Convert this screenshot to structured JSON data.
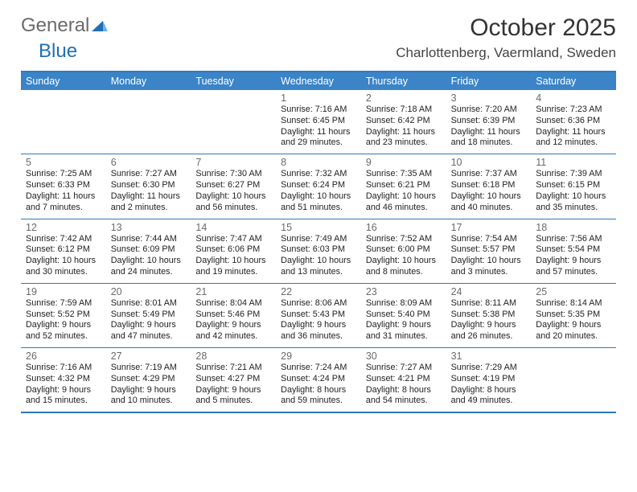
{
  "logo": {
    "word1": "General",
    "word2": "Blue"
  },
  "title": "October 2025",
  "location": "Charlottenberg, Vaermland, Sweden",
  "colors": {
    "header_bg": "#3a84c7",
    "header_text": "#ffffff",
    "rule": "#2f78bb",
    "daynum": "#6a6a6a",
    "body_text": "#222222",
    "logo_gray": "#6b6b6b",
    "logo_blue": "#1e6fb8"
  },
  "day_names": [
    "Sunday",
    "Monday",
    "Tuesday",
    "Wednesday",
    "Thursday",
    "Friday",
    "Saturday"
  ],
  "layout": {
    "columns": 7,
    "rows": 5,
    "first_day_column_index": 3
  },
  "days": [
    {
      "n": 1,
      "sunrise": "7:16 AM",
      "sunset": "6:45 PM",
      "daylight": "11 hours and 29 minutes."
    },
    {
      "n": 2,
      "sunrise": "7:18 AM",
      "sunset": "6:42 PM",
      "daylight": "11 hours and 23 minutes."
    },
    {
      "n": 3,
      "sunrise": "7:20 AM",
      "sunset": "6:39 PM",
      "daylight": "11 hours and 18 minutes."
    },
    {
      "n": 4,
      "sunrise": "7:23 AM",
      "sunset": "6:36 PM",
      "daylight": "11 hours and 12 minutes."
    },
    {
      "n": 5,
      "sunrise": "7:25 AM",
      "sunset": "6:33 PM",
      "daylight": "11 hours and 7 minutes."
    },
    {
      "n": 6,
      "sunrise": "7:27 AM",
      "sunset": "6:30 PM",
      "daylight": "11 hours and 2 minutes."
    },
    {
      "n": 7,
      "sunrise": "7:30 AM",
      "sunset": "6:27 PM",
      "daylight": "10 hours and 56 minutes."
    },
    {
      "n": 8,
      "sunrise": "7:32 AM",
      "sunset": "6:24 PM",
      "daylight": "10 hours and 51 minutes."
    },
    {
      "n": 9,
      "sunrise": "7:35 AM",
      "sunset": "6:21 PM",
      "daylight": "10 hours and 46 minutes."
    },
    {
      "n": 10,
      "sunrise": "7:37 AM",
      "sunset": "6:18 PM",
      "daylight": "10 hours and 40 minutes."
    },
    {
      "n": 11,
      "sunrise": "7:39 AM",
      "sunset": "6:15 PM",
      "daylight": "10 hours and 35 minutes."
    },
    {
      "n": 12,
      "sunrise": "7:42 AM",
      "sunset": "6:12 PM",
      "daylight": "10 hours and 30 minutes."
    },
    {
      "n": 13,
      "sunrise": "7:44 AM",
      "sunset": "6:09 PM",
      "daylight": "10 hours and 24 minutes."
    },
    {
      "n": 14,
      "sunrise": "7:47 AM",
      "sunset": "6:06 PM",
      "daylight": "10 hours and 19 minutes."
    },
    {
      "n": 15,
      "sunrise": "7:49 AM",
      "sunset": "6:03 PM",
      "daylight": "10 hours and 13 minutes."
    },
    {
      "n": 16,
      "sunrise": "7:52 AM",
      "sunset": "6:00 PM",
      "daylight": "10 hours and 8 minutes."
    },
    {
      "n": 17,
      "sunrise": "7:54 AM",
      "sunset": "5:57 PM",
      "daylight": "10 hours and 3 minutes."
    },
    {
      "n": 18,
      "sunrise": "7:56 AM",
      "sunset": "5:54 PM",
      "daylight": "9 hours and 57 minutes."
    },
    {
      "n": 19,
      "sunrise": "7:59 AM",
      "sunset": "5:52 PM",
      "daylight": "9 hours and 52 minutes."
    },
    {
      "n": 20,
      "sunrise": "8:01 AM",
      "sunset": "5:49 PM",
      "daylight": "9 hours and 47 minutes."
    },
    {
      "n": 21,
      "sunrise": "8:04 AM",
      "sunset": "5:46 PM",
      "daylight": "9 hours and 42 minutes."
    },
    {
      "n": 22,
      "sunrise": "8:06 AM",
      "sunset": "5:43 PM",
      "daylight": "9 hours and 36 minutes."
    },
    {
      "n": 23,
      "sunrise": "8:09 AM",
      "sunset": "5:40 PM",
      "daylight": "9 hours and 31 minutes."
    },
    {
      "n": 24,
      "sunrise": "8:11 AM",
      "sunset": "5:38 PM",
      "daylight": "9 hours and 26 minutes."
    },
    {
      "n": 25,
      "sunrise": "8:14 AM",
      "sunset": "5:35 PM",
      "daylight": "9 hours and 20 minutes."
    },
    {
      "n": 26,
      "sunrise": "7:16 AM",
      "sunset": "4:32 PM",
      "daylight": "9 hours and 15 minutes."
    },
    {
      "n": 27,
      "sunrise": "7:19 AM",
      "sunset": "4:29 PM",
      "daylight": "9 hours and 10 minutes."
    },
    {
      "n": 28,
      "sunrise": "7:21 AM",
      "sunset": "4:27 PM",
      "daylight": "9 hours and 5 minutes."
    },
    {
      "n": 29,
      "sunrise": "7:24 AM",
      "sunset": "4:24 PM",
      "daylight": "8 hours and 59 minutes."
    },
    {
      "n": 30,
      "sunrise": "7:27 AM",
      "sunset": "4:21 PM",
      "daylight": "8 hours and 54 minutes."
    },
    {
      "n": 31,
      "sunrise": "7:29 AM",
      "sunset": "4:19 PM",
      "daylight": "8 hours and 49 minutes."
    }
  ],
  "labels": {
    "sunrise": "Sunrise:",
    "sunset": "Sunset:",
    "daylight": "Daylight:"
  }
}
